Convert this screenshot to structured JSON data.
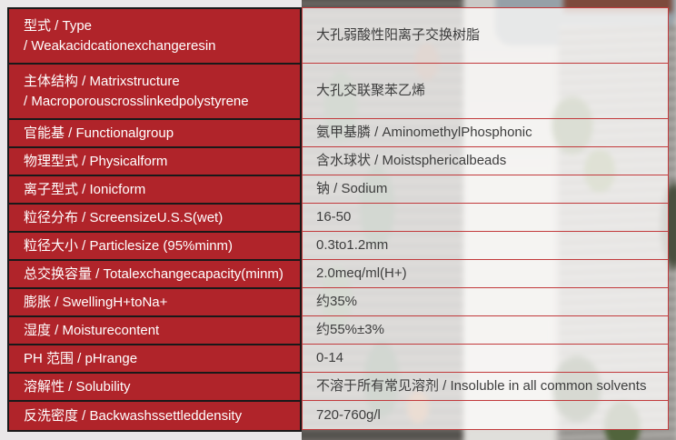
{
  "accent": {
    "label_cell_red": "#b0242a",
    "grid_line_red": "#c23a3c",
    "label_border_black": "#191919",
    "label_text": "#ffffff",
    "value_text": "#3d3d3d"
  },
  "table": {
    "rows": [
      {
        "label": "型式 / Type\n/ Weakacidcationexchangeresin",
        "value": "大孔弱酸性阳离子交换树脂"
      },
      {
        "label": "主体结构 / Matrixstructure\n/ Macroporouscrosslinkedpolystyrene",
        "value": "大孔交联聚苯乙烯"
      },
      {
        "label": "官能基 / Functionalgroup",
        "value": "氨甲基膦 / AminomethylPhosphonic"
      },
      {
        "label": "物理型式 / Physicalform",
        "value": "含水球状 / Moistsphericalbeads"
      },
      {
        "label": "离子型式 / Ionicform",
        "value": "钠 / Sodium"
      },
      {
        "label": "粒径分布 / ScreensizeU.S.S(wet)",
        "value": "16-50"
      },
      {
        "label": "粒径大小 / Particlesize (95%minm)",
        "value": "0.3to1.2mm"
      },
      {
        "label": "总交换容量 / Totalexchangecapacity(minm)",
        "value": "2.0meq/ml(H+)"
      },
      {
        "label": "膨胀 / SwellingH+toNa+",
        "value": "约35%"
      },
      {
        "label": "湿度 / Moisturecontent",
        "value": "约55%±3%"
      },
      {
        "label": "PH 范围 / pHrange",
        "value": "0-14"
      },
      {
        "label": "溶解性 / Solubility",
        "value": "不溶于所有常见溶剂 / Insoluble in all common solvents"
      },
      {
        "label": "反洗密度 / Backwashssettleddensity",
        "value": "720-760g/l"
      }
    ]
  }
}
